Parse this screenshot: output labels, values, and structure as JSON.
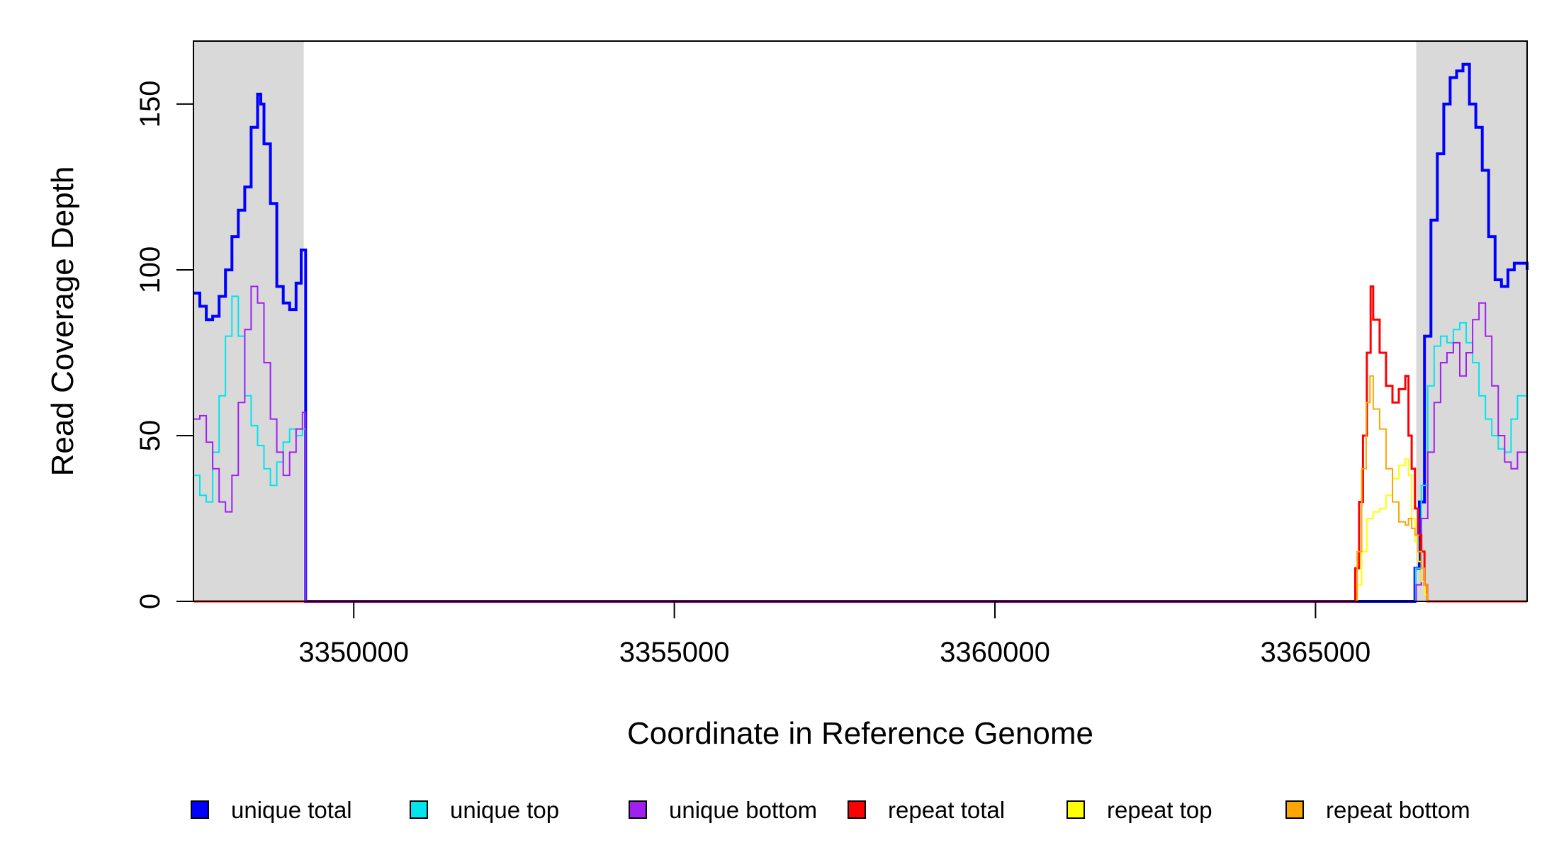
{
  "chart_data": {
    "type": "line",
    "title": "",
    "xlabel": "Coordinate in Reference Genome",
    "ylabel": "Read Coverage Depth",
    "xlim": [
      3347500,
      3368300
    ],
    "ylim": [
      0,
      169
    ],
    "x_ticks": [
      {
        "value": 3350000,
        "label": "3350000"
      },
      {
        "value": 3355000,
        "label": "3355000"
      },
      {
        "value": 3360000,
        "label": "3360000"
      },
      {
        "value": 3365000,
        "label": "3365000"
      }
    ],
    "y_ticks": [
      {
        "value": 0,
        "label": "0"
      },
      {
        "value": 50,
        "label": "50"
      },
      {
        "value": 100,
        "label": "100"
      },
      {
        "value": 150,
        "label": "150"
      }
    ],
    "shaded_regions": [
      {
        "x0": 3347500,
        "x1": 3349220,
        "color": "#d9d9d9"
      },
      {
        "x0": 3366570,
        "x1": 3368300,
        "color": "#d9d9d9"
      }
    ],
    "grid": false,
    "legend_position": "bottom",
    "series": [
      {
        "name": "unique total",
        "color": "#0000ff",
        "width": 4,
        "points": [
          [
            3347500,
            93
          ],
          [
            3347600,
            89
          ],
          [
            3347700,
            85
          ],
          [
            3347800,
            86
          ],
          [
            3347900,
            92
          ],
          [
            3348000,
            100
          ],
          [
            3348100,
            110
          ],
          [
            3348200,
            118
          ],
          [
            3348300,
            125
          ],
          [
            3348400,
            143
          ],
          [
            3348500,
            153
          ],
          [
            3348550,
            150
          ],
          [
            3348600,
            138
          ],
          [
            3348700,
            120
          ],
          [
            3348800,
            95
          ],
          [
            3348900,
            90
          ],
          [
            3349000,
            88
          ],
          [
            3349100,
            96
          ],
          [
            3349180,
            106
          ],
          [
            3349220,
            106
          ],
          [
            3349250,
            0
          ],
          [
            3366500,
            0
          ],
          [
            3366550,
            10
          ],
          [
            3366620,
            30
          ],
          [
            3366700,
            80
          ],
          [
            3366800,
            115
          ],
          [
            3366900,
            135
          ],
          [
            3367000,
            150
          ],
          [
            3367100,
            158
          ],
          [
            3367200,
            160
          ],
          [
            3367300,
            162
          ],
          [
            3367400,
            150
          ],
          [
            3367500,
            143
          ],
          [
            3367600,
            130
          ],
          [
            3367700,
            110
          ],
          [
            3367800,
            97
          ],
          [
            3367900,
            95
          ],
          [
            3368000,
            100
          ],
          [
            3368100,
            102
          ],
          [
            3368300,
            100
          ]
        ]
      },
      {
        "name": "unique top",
        "color": "#00e5ee",
        "width": 2,
        "points": [
          [
            3347500,
            38
          ],
          [
            3347600,
            32
          ],
          [
            3347700,
            30
          ],
          [
            3347800,
            45
          ],
          [
            3347900,
            62
          ],
          [
            3348000,
            80
          ],
          [
            3348100,
            92
          ],
          [
            3348200,
            80
          ],
          [
            3348300,
            62
          ],
          [
            3348400,
            53
          ],
          [
            3348500,
            47
          ],
          [
            3348600,
            40
          ],
          [
            3348700,
            35
          ],
          [
            3348800,
            42
          ],
          [
            3348900,
            48
          ],
          [
            3349000,
            52
          ],
          [
            3349100,
            50
          ],
          [
            3349200,
            52
          ],
          [
            3349250,
            0
          ],
          [
            3366500,
            0
          ],
          [
            3366560,
            10
          ],
          [
            3366650,
            35
          ],
          [
            3366750,
            65
          ],
          [
            3366850,
            77
          ],
          [
            3366950,
            80
          ],
          [
            3367050,
            78
          ],
          [
            3367150,
            82
          ],
          [
            3367250,
            84
          ],
          [
            3367350,
            78
          ],
          [
            3367450,
            72
          ],
          [
            3367550,
            62
          ],
          [
            3367650,
            55
          ],
          [
            3367750,
            50
          ],
          [
            3367850,
            46
          ],
          [
            3367950,
            45
          ],
          [
            3368050,
            55
          ],
          [
            3368150,
            62
          ],
          [
            3368300,
            52
          ]
        ]
      },
      {
        "name": "unique bottom",
        "color": "#a020f0",
        "width": 2,
        "points": [
          [
            3347500,
            55
          ],
          [
            3347600,
            56
          ],
          [
            3347700,
            48
          ],
          [
            3347800,
            40
          ],
          [
            3347900,
            30
          ],
          [
            3348000,
            27
          ],
          [
            3348100,
            38
          ],
          [
            3348200,
            60
          ],
          [
            3348300,
            82
          ],
          [
            3348400,
            95
          ],
          [
            3348500,
            90
          ],
          [
            3348600,
            72
          ],
          [
            3348700,
            55
          ],
          [
            3348800,
            45
          ],
          [
            3348900,
            38
          ],
          [
            3349000,
            45
          ],
          [
            3349100,
            52
          ],
          [
            3349200,
            57
          ],
          [
            3349250,
            0
          ],
          [
            3366500,
            0
          ],
          [
            3366570,
            5
          ],
          [
            3366650,
            25
          ],
          [
            3366750,
            45
          ],
          [
            3366850,
            60
          ],
          [
            3366950,
            72
          ],
          [
            3367050,
            75
          ],
          [
            3367150,
            78
          ],
          [
            3367250,
            68
          ],
          [
            3367350,
            75
          ],
          [
            3367450,
            85
          ],
          [
            3367550,
            90
          ],
          [
            3367650,
            80
          ],
          [
            3367750,
            65
          ],
          [
            3367850,
            50
          ],
          [
            3367950,
            42
          ],
          [
            3368050,
            40
          ],
          [
            3368150,
            45
          ],
          [
            3368300,
            52
          ]
        ]
      },
      {
        "name": "repeat total",
        "color": "#ff0000",
        "width": 3,
        "points": [
          [
            3347500,
            0
          ],
          [
            3365600,
            0
          ],
          [
            3365620,
            10
          ],
          [
            3365680,
            30
          ],
          [
            3365740,
            50
          ],
          [
            3365800,
            75
          ],
          [
            3365860,
            95
          ],
          [
            3365900,
            85
          ],
          [
            3366000,
            75
          ],
          [
            3366100,
            65
          ],
          [
            3366200,
            60
          ],
          [
            3366300,
            64
          ],
          [
            3366400,
            68
          ],
          [
            3366450,
            50
          ],
          [
            3366500,
            40
          ],
          [
            3366550,
            28
          ],
          [
            3366600,
            20
          ],
          [
            3366650,
            15
          ],
          [
            3366700,
            5
          ],
          [
            3366740,
            0
          ],
          [
            3368300,
            0
          ]
        ]
      },
      {
        "name": "repeat top",
        "color": "#ffff00",
        "width": 2,
        "points": [
          [
            3347500,
            0
          ],
          [
            3365600,
            0
          ],
          [
            3365650,
            5
          ],
          [
            3365720,
            15
          ],
          [
            3365800,
            25
          ],
          [
            3365900,
            27
          ],
          [
            3366000,
            28
          ],
          [
            3366100,
            32
          ],
          [
            3366200,
            37
          ],
          [
            3366300,
            41
          ],
          [
            3366400,
            43
          ],
          [
            3366450,
            38
          ],
          [
            3366500,
            25
          ],
          [
            3366550,
            18
          ],
          [
            3366600,
            12
          ],
          [
            3366650,
            6
          ],
          [
            3366700,
            2
          ],
          [
            3366740,
            0
          ],
          [
            3368300,
            0
          ]
        ]
      },
      {
        "name": "repeat bottom",
        "color": "#ffa500",
        "width": 2,
        "points": [
          [
            3347500,
            0
          ],
          [
            3365600,
            0
          ],
          [
            3365650,
            15
          ],
          [
            3365720,
            40
          ],
          [
            3365790,
            60
          ],
          [
            3365850,
            68
          ],
          [
            3365900,
            58
          ],
          [
            3366000,
            52
          ],
          [
            3366100,
            40
          ],
          [
            3366200,
            30
          ],
          [
            3366300,
            24
          ],
          [
            3366400,
            23
          ],
          [
            3366450,
            25
          ],
          [
            3366500,
            22
          ],
          [
            3366550,
            20
          ],
          [
            3366600,
            15
          ],
          [
            3366650,
            10
          ],
          [
            3366700,
            5
          ],
          [
            3366740,
            0
          ],
          [
            3368300,
            0
          ]
        ]
      }
    ]
  }
}
